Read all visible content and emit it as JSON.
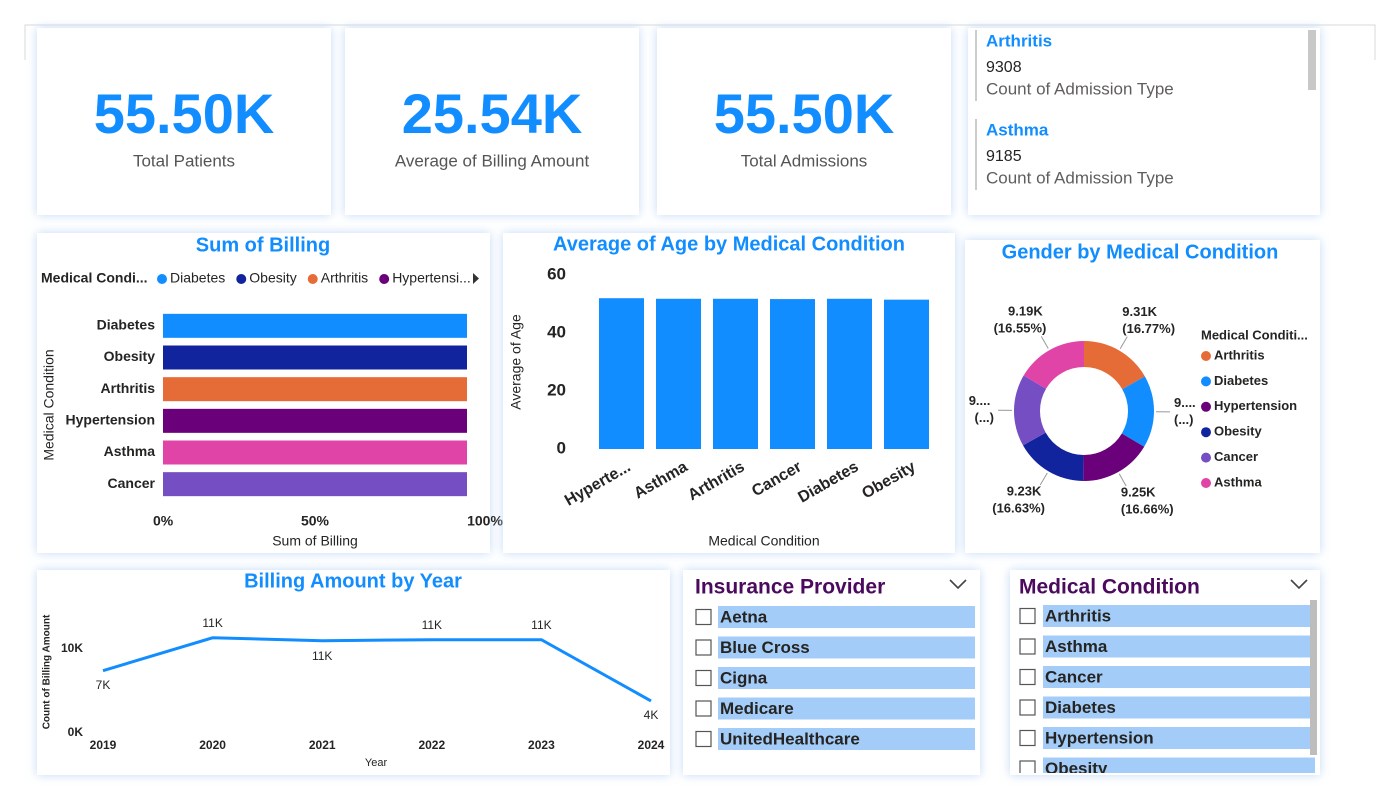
{
  "kpis": [
    {
      "value": "55.50K",
      "label": "Total Patients"
    },
    {
      "value": "25.54K",
      "label": "Average of Billing Amount"
    },
    {
      "value": "55.50K",
      "label": "Total Admissions"
    }
  ],
  "card": {
    "items": [
      {
        "name": "Arthritis",
        "value": 9308,
        "label": "Count of Admission Type"
      },
      {
        "name": "Asthma",
        "value": 9185,
        "label": "Count of Admission Type"
      }
    ]
  },
  "chart_data": [
    {
      "type": "hbar",
      "title": "Sum of Billing",
      "legend": {
        "title": "Medical Condi...",
        "entries": [
          "Diabetes",
          "Obesity",
          "Arthritis",
          "Hypertensi..."
        ],
        "colors": [
          "#118dff",
          "#12239e",
          "#e66c37",
          "#6b007b"
        ]
      },
      "categories": [
        "Diabetes",
        "Obesity",
        "Arthritis",
        "Hypertension",
        "Asthma",
        "Cancer"
      ],
      "values": [
        100,
        100,
        100,
        100,
        100,
        100
      ],
      "colors": [
        "#118dff",
        "#12239e",
        "#e66c37",
        "#6b007b",
        "#e044a7",
        "#744ec2"
      ],
      "xlim": [
        0,
        100
      ],
      "xticks": [
        {
          "value": 0,
          "label": "0%"
        },
        {
          "value": 50,
          "label": "50%"
        },
        {
          "value": 100,
          "label": "100%"
        }
      ],
      "xlabel": "Sum of Billing",
      "ylabel": "Medical Condition",
      "grid": false
    },
    {
      "type": "bar",
      "title": "Average of Age by Medical Condition",
      "categories": [
        "Hyperte...",
        "Asthma",
        "Arthritis",
        "Cancer",
        "Diabetes",
        "Obesity"
      ],
      "values": [
        52.0,
        51.8,
        51.8,
        51.7,
        51.8,
        51.5
      ],
      "color": "#118dff",
      "ylim": [
        0,
        60
      ],
      "yticks": [
        0,
        20,
        40,
        60
      ],
      "xlabel": "Medical Condition",
      "ylabel": "Average of Age",
      "grid": false
    },
    {
      "type": "donut",
      "title": "Gender by Medical Condition",
      "legend": {
        "title": "Medical Conditi..."
      },
      "categories": [
        "Arthritis",
        "Diabetes",
        "Hypertension",
        "Obesity",
        "Cancer",
        "Asthma"
      ],
      "values": [
        9308,
        9304,
        9245,
        9231,
        9227,
        9185
      ],
      "value_labels": [
        "9.31K (16.77%)",
        "9.... (...)",
        "9.25K (16.66%)",
        "9.23K (16.63%)",
        "9.... (...)",
        "9.19K (16.55%)"
      ],
      "colors": [
        "#e66c37",
        "#118dff",
        "#6b007b",
        "#12239e",
        "#744ec2",
        "#e044a7"
      ]
    },
    {
      "type": "line",
      "title": "Billing Amount by Year",
      "x": [
        2019,
        2020,
        2021,
        2022,
        2023,
        2024
      ],
      "values": [
        7400,
        11300,
        10950,
        11070,
        11070,
        3800
      ],
      "value_labels": [
        "7K",
        "11K",
        "11K",
        "11K",
        "11K",
        "4K"
      ],
      "color": "#118dff",
      "xlim": [
        2019,
        2024
      ],
      "xticks": [
        2019,
        2020,
        2021,
        2022,
        2023,
        2024
      ],
      "ylim": [
        0,
        14000
      ],
      "yticks": [
        {
          "value": 0,
          "label": "0K"
        },
        {
          "value": 10000,
          "label": "10K"
        }
      ],
      "xlabel": "Year",
      "ylabel": "Count of Billing Amount",
      "grid": false
    }
  ],
  "slicers": [
    {
      "title": "Insurance Provider",
      "items": [
        "Aetna",
        "Blue Cross",
        "Cigna",
        "Medicare",
        "UnitedHealthcare"
      ]
    },
    {
      "title": "Medical Condition",
      "items": [
        "Arthritis",
        "Asthma",
        "Cancer",
        "Diabetes",
        "Hypertension",
        "Obesity"
      ]
    }
  ]
}
